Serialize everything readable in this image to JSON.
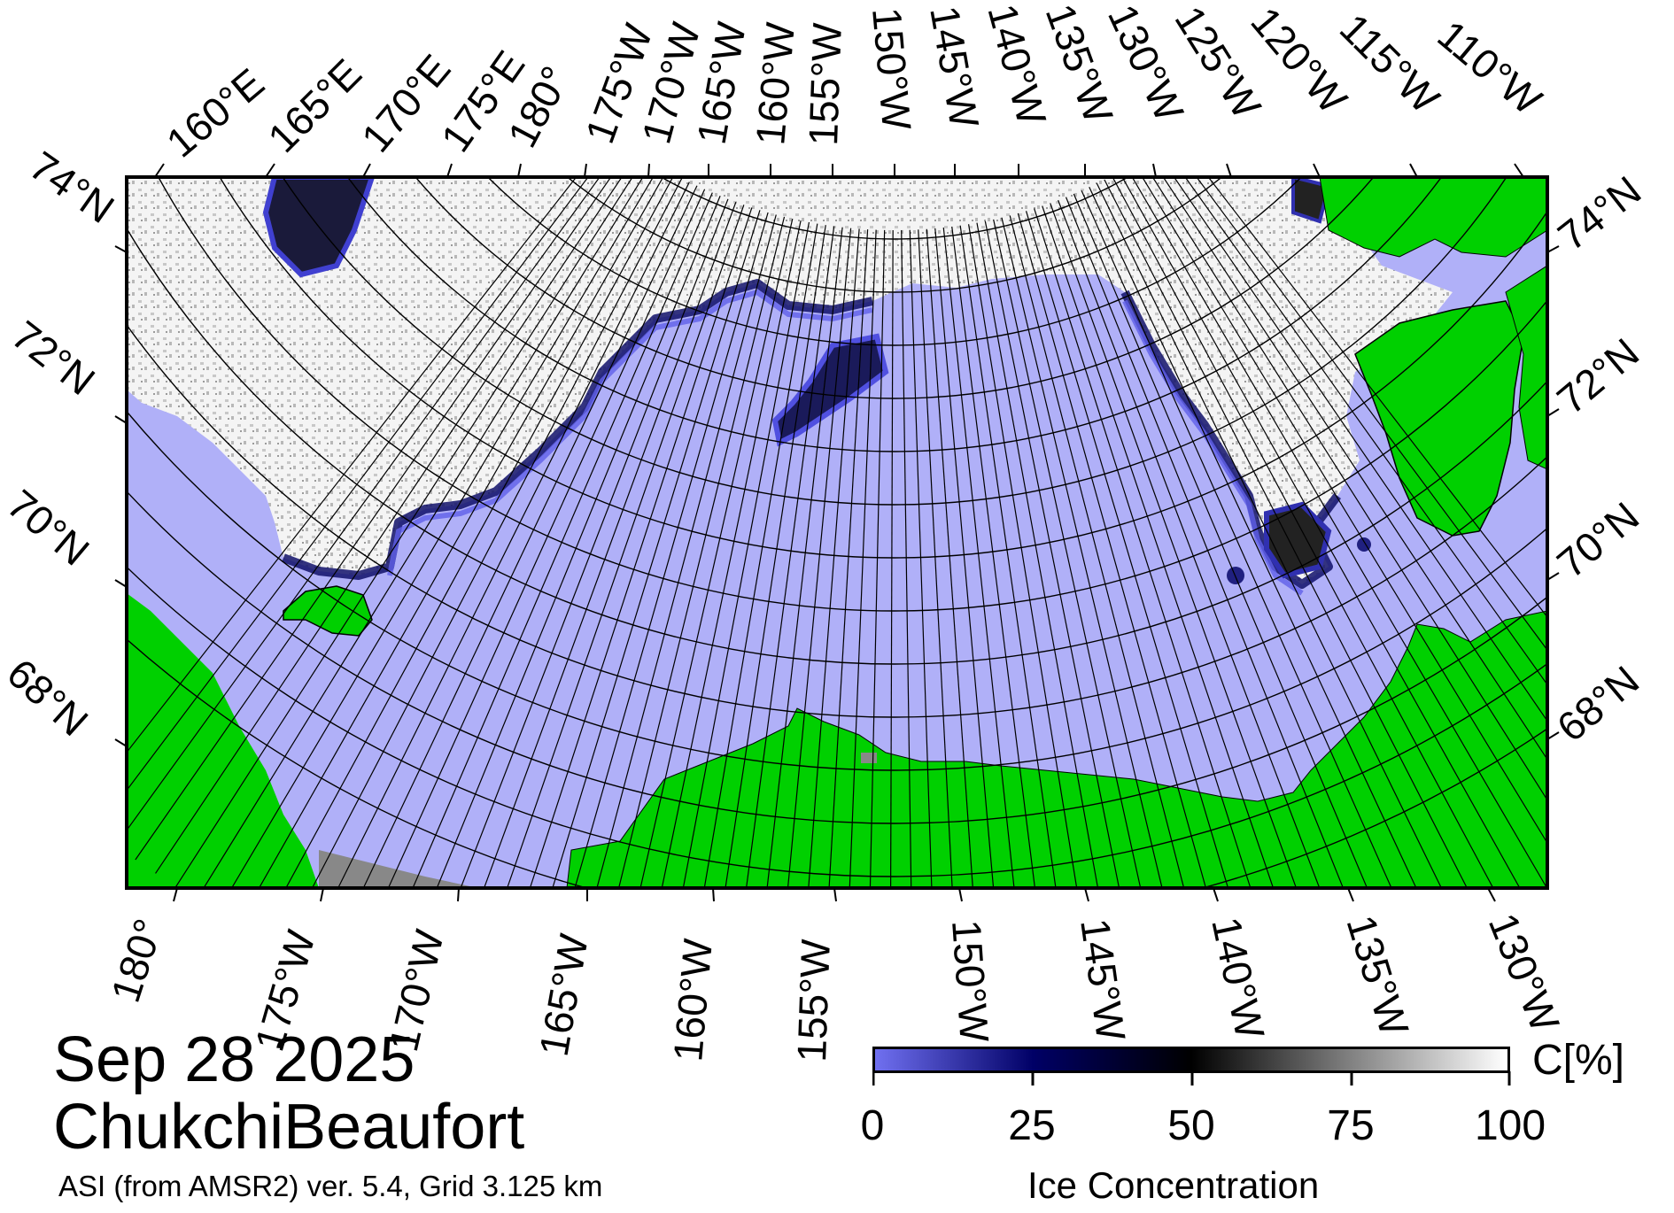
{
  "map": {
    "date": "Sep 28 2025",
    "region": "ChukchiBeaufort",
    "product": "ASI (from AMSR2) ver. 5.4,  Grid 3.125 km",
    "colors": {
      "open_water": "#b0b0f8",
      "land": "#00d000",
      "no_data": "#888888",
      "ice_low": "#7070f0",
      "ice_mid": "#000066",
      "ice_50": "#000000",
      "ice_high": "#ffffff"
    },
    "top_lon_labels": [
      "160°E",
      "165°E",
      "170°E",
      "175°E",
      "180°",
      "175°W",
      "170°W",
      "165°W",
      "160°W",
      "155°W",
      "150°W",
      "145°W",
      "140°W",
      "135°W",
      "130°W",
      "125°W",
      "120°W",
      "115°W",
      "110°W"
    ],
    "bottom_lon_labels": [
      "180°",
      "175°W",
      "170°W",
      "165°W",
      "160°W",
      "155°W",
      "150°W",
      "145°W",
      "140°W",
      "135°W",
      "130°W"
    ],
    "left_lat_labels": [
      "74°N",
      "72°N",
      "70°N",
      "68°N"
    ],
    "right_lat_labels": [
      "74°N",
      "72°N",
      "70°N",
      "68°N"
    ]
  },
  "colorbar": {
    "title": "Ice Concentration",
    "unit": "C[%]",
    "ticks": [
      "0",
      "25",
      "50",
      "75",
      "100"
    ],
    "min": 0,
    "max": 100
  }
}
